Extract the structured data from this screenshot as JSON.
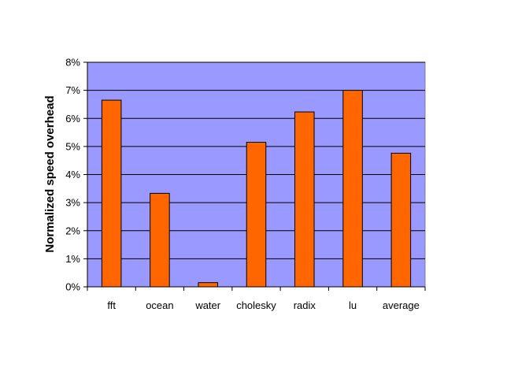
{
  "chart_data": {
    "type": "bar",
    "title": "",
    "xlabel": "",
    "ylabel": "Normalized speed overhead",
    "categories": [
      "fft",
      "ocean",
      "water",
      "cholesky",
      "radix",
      "lu",
      "average"
    ],
    "values": [
      6.65,
      3.33,
      0.15,
      5.15,
      6.23,
      7.0,
      4.76
    ],
    "ylim": [
      0,
      8
    ],
    "yticks": [
      0,
      1,
      2,
      3,
      4,
      5,
      6,
      7,
      8
    ],
    "ytick_labels": [
      "0%",
      "1%",
      "2%",
      "3%",
      "4%",
      "5%",
      "6%",
      "7%",
      "8%"
    ],
    "grid": true,
    "legend": "none",
    "colors": {
      "plot_background": "#9999FF",
      "bar_fill": "#FF6600",
      "bar_stroke": "#000000",
      "gridline": "#000000"
    }
  }
}
